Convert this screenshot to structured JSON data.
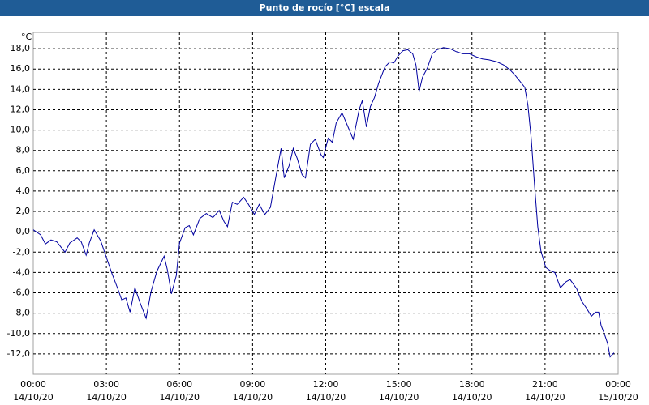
{
  "chart_data": {
    "type": "line",
    "title": "Punto de rocío [°C] escala",
    "y_unit": "°C",
    "x": [
      0,
      0.3,
      0.5,
      0.73,
      0.97,
      1.3,
      1.5,
      1.8,
      1.97,
      2.17,
      2.3,
      2.5,
      2.77,
      2.97,
      3.23,
      3.47,
      3.63,
      3.8,
      3.97,
      4.17,
      4.37,
      4.63,
      4.83,
      5.07,
      5.37,
      5.5,
      5.67,
      5.87,
      6,
      6.23,
      6.4,
      6.57,
      6.83,
      7.1,
      7.37,
      7.63,
      7.83,
      7.97,
      8.17,
      8.37,
      8.63,
      8.83,
      9.07,
      9.27,
      9.5,
      9.73,
      9.97,
      10.17,
      10.3,
      10.5,
      10.67,
      10.83,
      11.03,
      11.17,
      11.37,
      11.57,
      11.8,
      11.9,
      12.1,
      12.27,
      12.43,
      12.67,
      12.9,
      13.13,
      13.37,
      13.5,
      13.67,
      13.83,
      14,
      14.17,
      14.43,
      14.63,
      14.8,
      14.97,
      15.17,
      15.37,
      15.57,
      15.7,
      15.83,
      15.97,
      16.17,
      16.37,
      16.57,
      16.83,
      17.1,
      17.37,
      17.63,
      17.9,
      18.17,
      18.43,
      18.7,
      19.03,
      19.3,
      19.57,
      19.77,
      19.97,
      20.17,
      20.3,
      20.43,
      20.57,
      20.7,
      20.83,
      21.03,
      21.2,
      21.4,
      21.63,
      21.87,
      22.03,
      22.3,
      22.5,
      22.7,
      22.9,
      23.07,
      23.2,
      23.3,
      23.43,
      23.57,
      23.67,
      23.83
    ],
    "series": [
      {
        "name": "Punto de rocío",
        "color": "#0000a0",
        "values": [
          0.2,
          -0.3,
          -1.2,
          -0.8,
          -1.0,
          -2.0,
          -1.1,
          -0.6,
          -1.0,
          -2.3,
          -1.1,
          0.2,
          -0.9,
          -2.3,
          -4.1,
          -5.6,
          -6.7,
          -6.5,
          -7.9,
          -5.5,
          -6.9,
          -8.5,
          -5.9,
          -3.9,
          -2.4,
          -3.7,
          -6.1,
          -4.3,
          -1.1,
          0.4,
          0.6,
          -0.3,
          1.3,
          1.8,
          1.4,
          2.1,
          1.0,
          0.5,
          2.9,
          2.7,
          3.4,
          2.7,
          1.7,
          2.7,
          1.7,
          2.4,
          5.6,
          8.2,
          5.3,
          6.5,
          8.2,
          7.2,
          5.6,
          5.3,
          8.6,
          9.1,
          7.6,
          7.3,
          9.2,
          8.8,
          10.7,
          11.7,
          10.4,
          9.1,
          12.0,
          12.9,
          10.3,
          12.3,
          13.2,
          14.6,
          16.2,
          16.7,
          16.6,
          17.3,
          17.8,
          17.9,
          17.5,
          16.4,
          13.8,
          15.2,
          16.1,
          17.5,
          17.9,
          18.1,
          18.0,
          17.7,
          17.5,
          17.5,
          17.2,
          17.0,
          16.9,
          16.7,
          16.4,
          15.9,
          15.4,
          14.8,
          14.2,
          12.4,
          9.2,
          4.5,
          0.5,
          -1.9,
          -3.5,
          -3.8,
          -4.0,
          -5.5,
          -4.9,
          -4.7,
          -5.6,
          -6.8,
          -7.5,
          -8.3,
          -7.9,
          -7.9,
          -9.2,
          -10.0,
          -11.0,
          -12.3,
          -11.9
        ]
      }
    ],
    "xlim": [
      0,
      24
    ],
    "xticks": [
      {
        "value": 0,
        "label": "00:00"
      },
      {
        "value": 3,
        "label": "03:00"
      },
      {
        "value": 6,
        "label": "06:00"
      },
      {
        "value": 9,
        "label": "09:00"
      },
      {
        "value": 12,
        "label": "12:00"
      },
      {
        "value": 15,
        "label": "15:00"
      },
      {
        "value": 18,
        "label": "18:00"
      },
      {
        "value": 21,
        "label": "21:00"
      },
      {
        "value": 24,
        "label": "00:00"
      }
    ],
    "xtick_dates": [
      "14/10/20",
      "14/10/20",
      "14/10/20",
      "14/10/20",
      "14/10/20",
      "14/10/20",
      "14/10/20",
      "14/10/20",
      "15/10/20"
    ],
    "ylim": [
      -14,
      19.6
    ],
    "yticks": [
      {
        "value": 18,
        "label": "18,0"
      },
      {
        "value": 16,
        "label": "16,0"
      },
      {
        "value": 14,
        "label": "14,0"
      },
      {
        "value": 12,
        "label": "12,0"
      },
      {
        "value": 10,
        "label": "10,0"
      },
      {
        "value": 8,
        "label": "8,0"
      },
      {
        "value": 6,
        "label": "6,0"
      },
      {
        "value": 4,
        "label": "4,0"
      },
      {
        "value": 2,
        "label": "2,0"
      },
      {
        "value": 0,
        "label": "0,0"
      },
      {
        "value": -2,
        "label": "-2,0"
      },
      {
        "value": -4,
        "label": "-4,0"
      },
      {
        "value": -6,
        "label": "-6,0"
      },
      {
        "value": -8,
        "label": "-8,0"
      },
      {
        "value": -10,
        "label": "-10,0"
      },
      {
        "value": -12,
        "label": "-12,0"
      }
    ],
    "grid": true
  }
}
